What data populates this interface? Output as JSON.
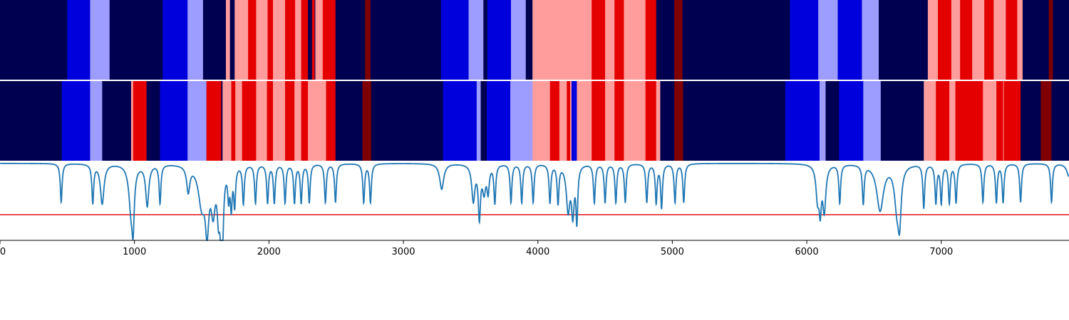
{
  "chart_data": {
    "type": "heatmap",
    "title": "",
    "xlabel": "",
    "ylabel": "",
    "xlim": [
      0,
      7950
    ],
    "grid": false,
    "legend": "none",
    "palette": {
      "0": "#000050",
      "1": "#0000dd",
      "2": "#9d9dff",
      "3": "#ff9d9d",
      "4": "#e50000",
      "5": "#7f0000"
    },
    "line_color": "#1f77b4",
    "threshold_color": "#e01010",
    "x_ticks": [
      {
        "value": 0,
        "label": "0"
      },
      {
        "value": 1000,
        "label": "1000"
      },
      {
        "value": 2000,
        "label": "2000"
      },
      {
        "value": 3000,
        "label": "3000"
      },
      {
        "value": 4000,
        "label": "4000"
      },
      {
        "value": 5000,
        "label": "5000"
      },
      {
        "value": 6000,
        "label": "6000"
      },
      {
        "value": 7000,
        "label": "7000"
      }
    ],
    "state_rows": [
      {
        "segments": [
          [
            0,
            500,
            0
          ],
          [
            500,
            670,
            1
          ],
          [
            670,
            815,
            2
          ],
          [
            815,
            1210,
            0
          ],
          [
            1210,
            1395,
            1
          ],
          [
            1395,
            1510,
            2
          ],
          [
            1510,
            1680,
            0
          ],
          [
            1680,
            1710,
            3
          ],
          [
            1710,
            1745,
            0
          ],
          [
            1745,
            1845,
            3
          ],
          [
            1845,
            1905,
            4
          ],
          [
            1905,
            1990,
            3
          ],
          [
            1990,
            2030,
            4
          ],
          [
            2030,
            2120,
            3
          ],
          [
            2120,
            2195,
            4
          ],
          [
            2195,
            2240,
            3
          ],
          [
            2240,
            2290,
            4
          ],
          [
            2290,
            2320,
            0
          ],
          [
            2320,
            2340,
            4
          ],
          [
            2340,
            2345,
            0
          ],
          [
            2345,
            2400,
            3
          ],
          [
            2400,
            2495,
            4
          ],
          [
            2495,
            2715,
            0
          ],
          [
            2715,
            2755,
            5
          ],
          [
            2755,
            3280,
            0
          ],
          [
            3280,
            3485,
            1
          ],
          [
            3485,
            3595,
            2
          ],
          [
            3595,
            3625,
            0
          ],
          [
            3625,
            3800,
            1
          ],
          [
            3800,
            3910,
            2
          ],
          [
            3910,
            3960,
            0
          ],
          [
            3960,
            4140,
            3
          ],
          [
            4140,
            4400,
            3
          ],
          [
            4400,
            4500,
            4
          ],
          [
            4500,
            4570,
            3
          ],
          [
            4570,
            4640,
            4
          ],
          [
            4640,
            4800,
            3
          ],
          [
            4800,
            4880,
            4
          ],
          [
            4880,
            5015,
            0
          ],
          [
            5015,
            5075,
            5
          ],
          [
            5075,
            5875,
            0
          ],
          [
            5875,
            6085,
            1
          ],
          [
            6085,
            6230,
            2
          ],
          [
            6230,
            6410,
            1
          ],
          [
            6410,
            6535,
            2
          ],
          [
            6535,
            6900,
            0
          ],
          [
            6900,
            6975,
            3
          ],
          [
            6975,
            7075,
            4
          ],
          [
            7075,
            7140,
            3
          ],
          [
            7140,
            7230,
            4
          ],
          [
            7230,
            7320,
            3
          ],
          [
            7320,
            7390,
            4
          ],
          [
            7390,
            7480,
            3
          ],
          [
            7480,
            7565,
            4
          ],
          [
            7565,
            7605,
            3
          ],
          [
            7605,
            7800,
            0
          ],
          [
            7800,
            7830,
            5
          ],
          [
            7830,
            7950,
            0
          ]
        ]
      },
      {
        "segments": [
          [
            0,
            460,
            0
          ],
          [
            460,
            670,
            1
          ],
          [
            670,
            760,
            2
          ],
          [
            760,
            975,
            0
          ],
          [
            975,
            990,
            3
          ],
          [
            990,
            1090,
            4
          ],
          [
            1090,
            1190,
            0
          ],
          [
            1190,
            1395,
            1
          ],
          [
            1395,
            1535,
            2
          ],
          [
            1535,
            1645,
            4
          ],
          [
            1645,
            1655,
            0
          ],
          [
            1655,
            1720,
            3
          ],
          [
            1720,
            1750,
            4
          ],
          [
            1750,
            1800,
            3
          ],
          [
            1800,
            1905,
            4
          ],
          [
            1905,
            1985,
            3
          ],
          [
            1985,
            2030,
            4
          ],
          [
            2030,
            2120,
            3
          ],
          [
            2120,
            2190,
            4
          ],
          [
            2190,
            2240,
            3
          ],
          [
            2240,
            2290,
            4
          ],
          [
            2290,
            2425,
            3
          ],
          [
            2425,
            2495,
            4
          ],
          [
            2495,
            2695,
            0
          ],
          [
            2695,
            2760,
            5
          ],
          [
            2760,
            3295,
            0
          ],
          [
            3295,
            3545,
            1
          ],
          [
            3545,
            3575,
            2
          ],
          [
            3575,
            3620,
            0
          ],
          [
            3620,
            3795,
            1
          ],
          [
            3795,
            3960,
            2
          ],
          [
            3960,
            4090,
            3
          ],
          [
            4090,
            4160,
            4
          ],
          [
            4160,
            4215,
            3
          ],
          [
            4215,
            4240,
            4
          ],
          [
            4240,
            4250,
            3
          ],
          [
            4250,
            4290,
            1
          ],
          [
            4290,
            4400,
            3
          ],
          [
            4400,
            4500,
            4
          ],
          [
            4500,
            4570,
            3
          ],
          [
            4570,
            4640,
            4
          ],
          [
            4640,
            4800,
            3
          ],
          [
            4800,
            4880,
            4
          ],
          [
            4880,
            4910,
            3
          ],
          [
            4910,
            5015,
            0
          ],
          [
            5015,
            5080,
            5
          ],
          [
            5080,
            5840,
            0
          ],
          [
            5840,
            6095,
            1
          ],
          [
            6095,
            6140,
            2
          ],
          [
            6140,
            6240,
            0
          ],
          [
            6240,
            6420,
            1
          ],
          [
            6420,
            6550,
            2
          ],
          [
            6550,
            6870,
            0
          ],
          [
            6870,
            6960,
            3
          ],
          [
            6960,
            7060,
            4
          ],
          [
            7060,
            7105,
            3
          ],
          [
            7105,
            7310,
            4
          ],
          [
            7310,
            7410,
            3
          ],
          [
            7410,
            7460,
            4
          ],
          [
            7460,
            7465,
            3
          ],
          [
            7465,
            7590,
            4
          ],
          [
            7590,
            7740,
            0
          ],
          [
            7740,
            7820,
            5
          ],
          [
            7820,
            7950,
            0
          ]
        ]
      }
    ],
    "line_panel": {
      "ylim": [
        -0.6,
        0.02
      ],
      "threshold": -0.4,
      "baseline": 0,
      "dips": [
        [
          455,
          -0.3,
          8
        ],
        [
          690,
          -0.3,
          8
        ],
        [
          760,
          -0.31,
          16
        ],
        [
          975,
          -0.34,
          20
        ],
        [
          990,
          -0.36,
          10
        ],
        [
          1095,
          -0.32,
          14
        ],
        [
          1190,
          -0.3,
          8
        ],
        [
          1400,
          -0.2,
          14
        ],
        [
          1500,
          -0.3,
          30
        ],
        [
          1540,
          -0.44,
          16
        ],
        [
          1585,
          -0.32,
          18
        ],
        [
          1625,
          -0.32,
          12
        ],
        [
          1645,
          -0.42,
          10
        ],
        [
          1655,
          -0.4,
          10
        ],
        [
          1700,
          -0.22,
          8
        ],
        [
          1720,
          -0.3,
          8
        ],
        [
          1745,
          -0.3,
          8
        ],
        [
          1810,
          -0.3,
          8
        ],
        [
          1900,
          -0.3,
          8
        ],
        [
          1990,
          -0.3,
          8
        ],
        [
          2040,
          -0.3,
          8
        ],
        [
          2120,
          -0.3,
          8
        ],
        [
          2190,
          -0.3,
          8
        ],
        [
          2240,
          -0.3,
          8
        ],
        [
          2300,
          -0.3,
          8
        ],
        [
          2420,
          -0.3,
          8
        ],
        [
          2495,
          -0.3,
          8
        ],
        [
          2705,
          -0.3,
          8
        ],
        [
          2755,
          -0.3,
          8
        ],
        [
          3285,
          -0.2,
          18
        ],
        [
          3520,
          -0.28,
          14
        ],
        [
          3565,
          -0.4,
          10
        ],
        [
          3600,
          -0.2,
          14
        ],
        [
          3630,
          -0.2,
          10
        ],
        [
          3680,
          -0.3,
          8
        ],
        [
          3800,
          -0.3,
          8
        ],
        [
          3880,
          -0.3,
          8
        ],
        [
          3965,
          -0.3,
          8
        ],
        [
          4090,
          -0.3,
          8
        ],
        [
          4150,
          -0.3,
          8
        ],
        [
          4225,
          -0.35,
          16
        ],
        [
          4260,
          -0.36,
          12
        ],
        [
          4290,
          -0.42,
          8
        ],
        [
          4420,
          -0.3,
          8
        ],
        [
          4500,
          -0.3,
          8
        ],
        [
          4580,
          -0.3,
          8
        ],
        [
          4650,
          -0.3,
          8
        ],
        [
          4810,
          -0.3,
          8
        ],
        [
          4880,
          -0.3,
          8
        ],
        [
          4920,
          -0.34,
          8
        ],
        [
          5020,
          -0.3,
          8
        ],
        [
          5085,
          -0.3,
          8
        ],
        [
          6080,
          -0.25,
          14
        ],
        [
          6100,
          -0.3,
          10
        ],
        [
          6130,
          -0.35,
          14
        ],
        [
          6245,
          -0.3,
          8
        ],
        [
          6420,
          -0.3,
          8
        ],
        [
          6545,
          -0.36,
          30
        ],
        [
          6670,
          -0.3,
          22
        ],
        [
          6690,
          -0.37,
          14
        ],
        [
          6870,
          -0.34,
          8
        ],
        [
          6960,
          -0.3,
          8
        ],
        [
          7000,
          -0.3,
          8
        ],
        [
          7060,
          -0.3,
          8
        ],
        [
          7110,
          -0.3,
          8
        ],
        [
          7310,
          -0.3,
          8
        ],
        [
          7410,
          -0.3,
          8
        ],
        [
          7460,
          -0.3,
          8
        ],
        [
          7590,
          -0.3,
          8
        ],
        [
          7820,
          -0.3,
          8
        ],
        [
          7950,
          -0.1,
          20
        ]
      ]
    }
  }
}
